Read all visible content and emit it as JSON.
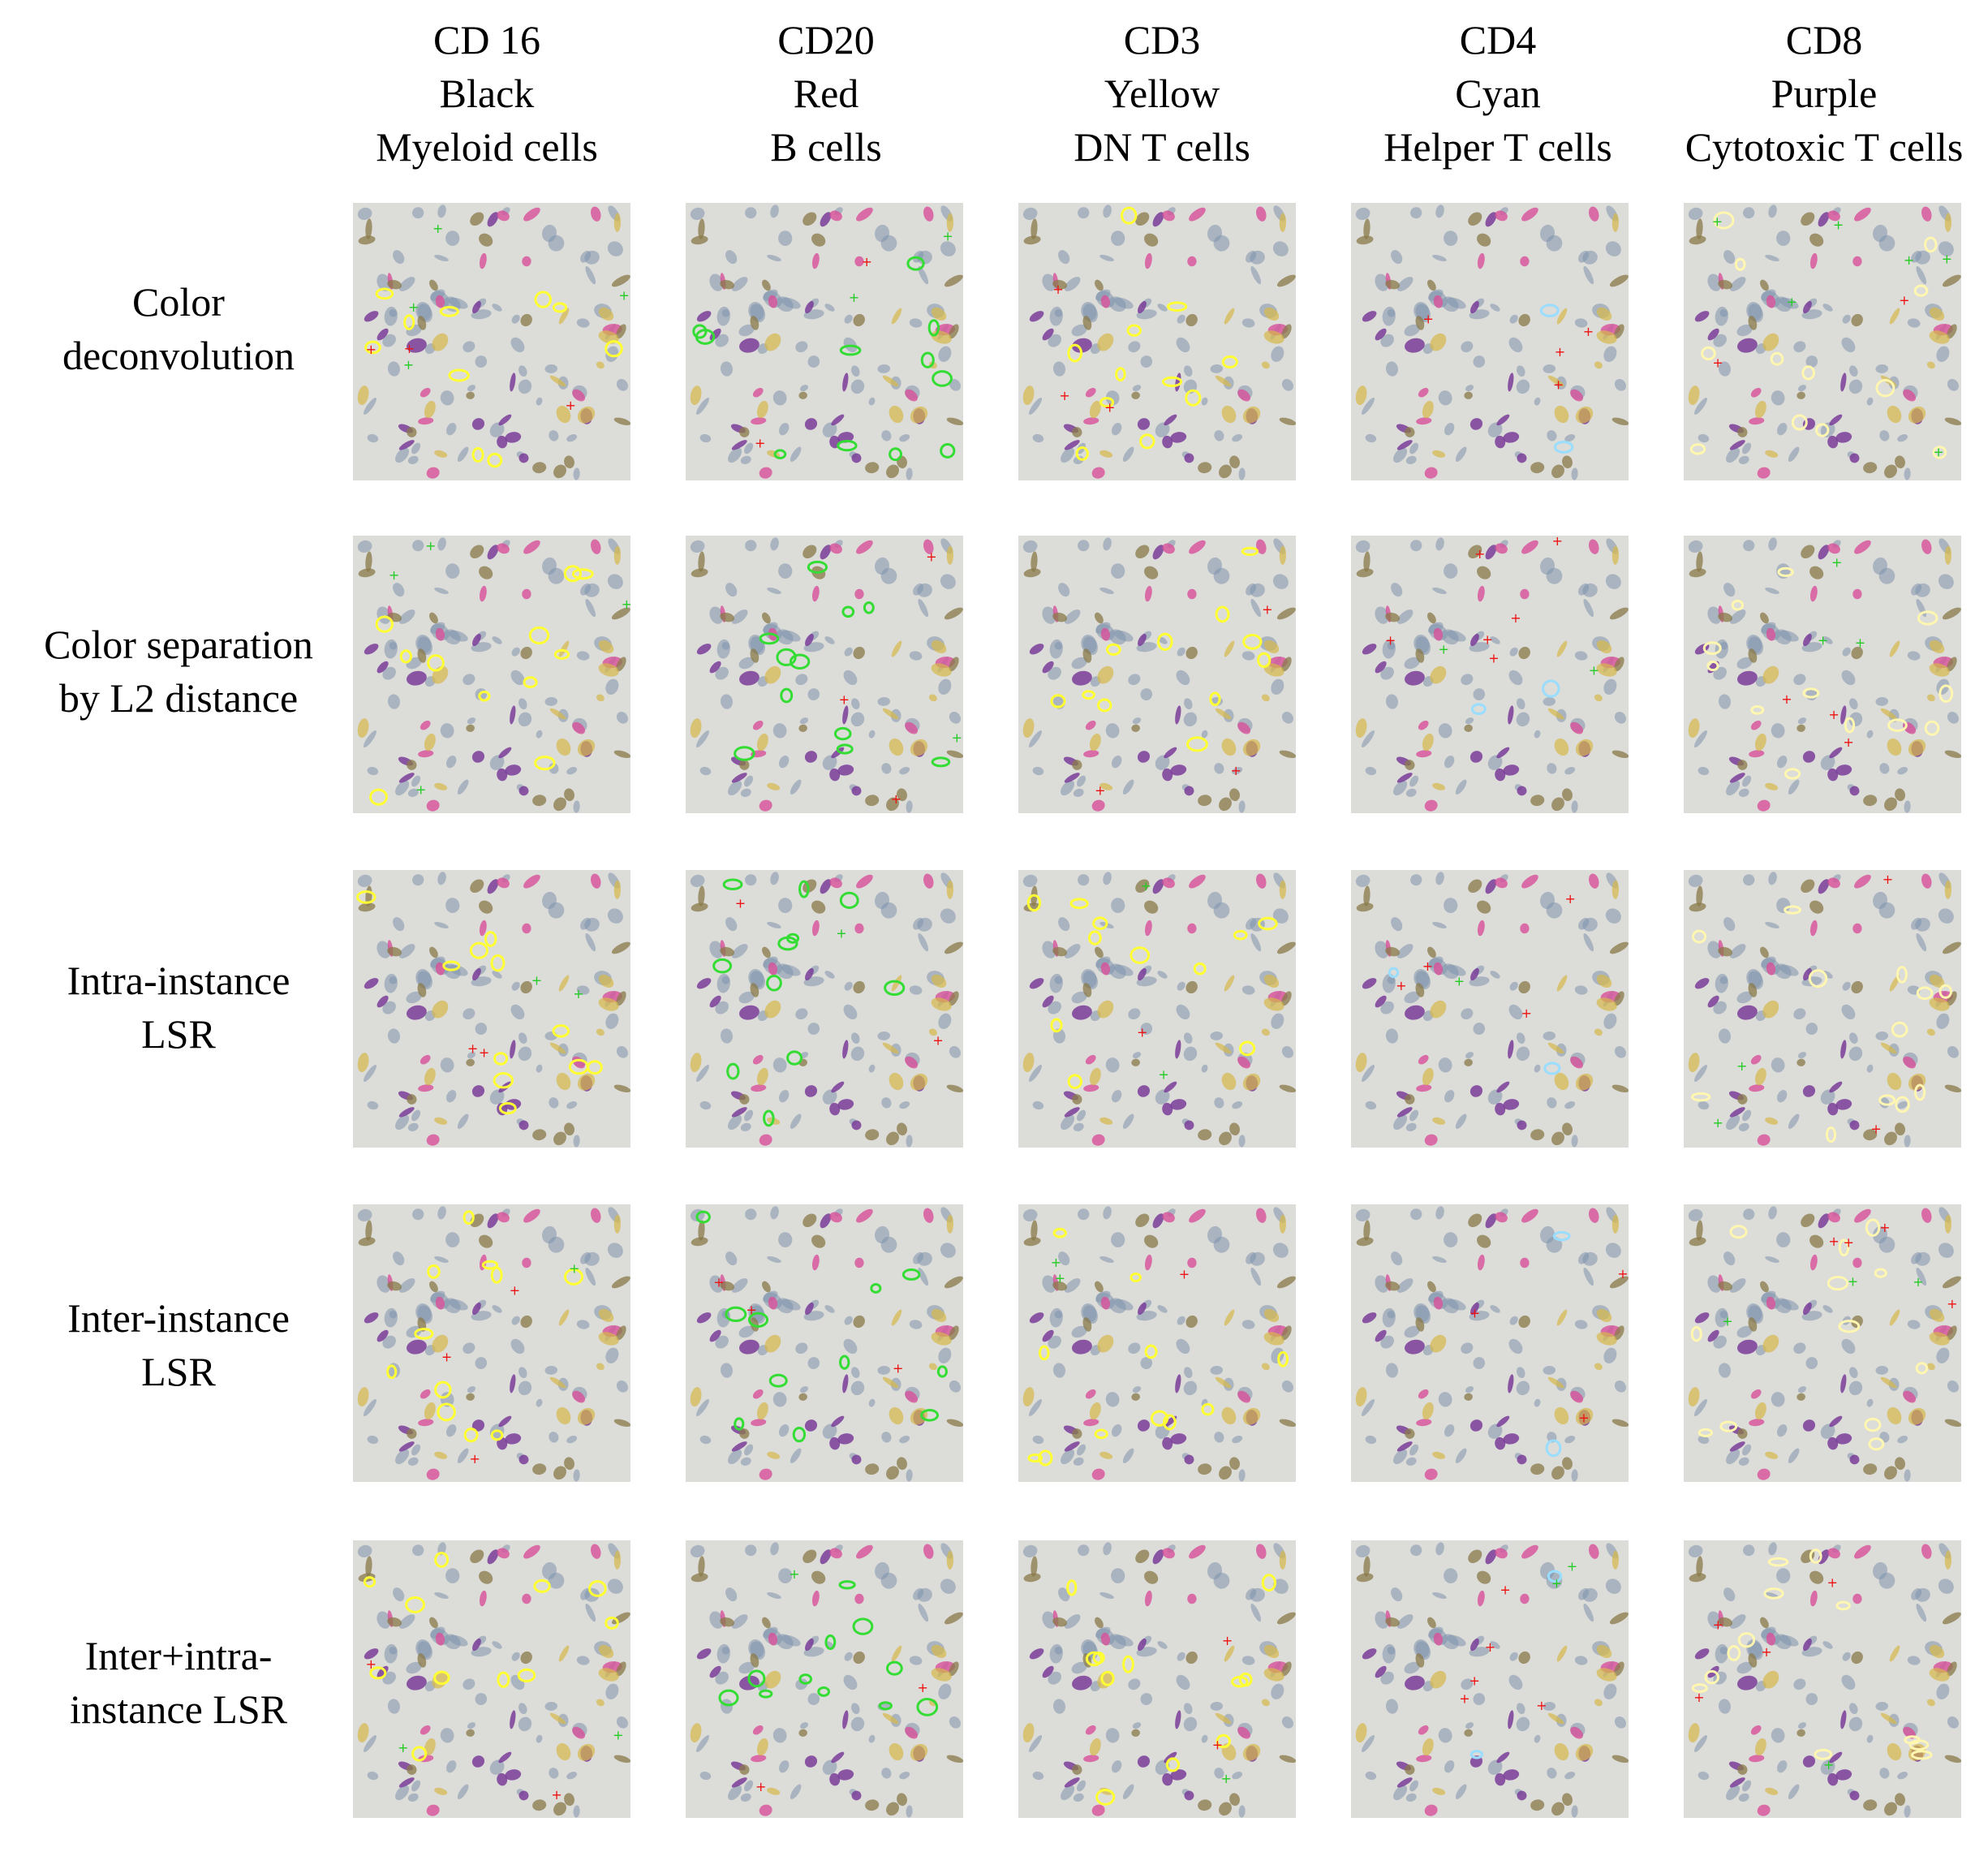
{
  "figure": {
    "columns": [
      {
        "marker": "CD 16",
        "color": "Black",
        "cell_type": "Myeloid cells",
        "highlight": "#ffff33"
      },
      {
        "marker": "CD20",
        "color": "Red",
        "cell_type": "B cells",
        "highlight": "#33dd33"
      },
      {
        "marker": "CD3",
        "color": "Yellow",
        "cell_type": "DN T cells",
        "highlight": "#ffff33"
      },
      {
        "marker": "CD4",
        "color": "Cyan",
        "cell_type": "Helper T cells",
        "highlight": "#99ddff"
      },
      {
        "marker": "CD8",
        "color": "Purple",
        "cell_type": "Cytotoxic T cells",
        "highlight": "#fff6b0"
      }
    ],
    "rows": [
      {
        "lines": [
          "Color",
          "deconvolution"
        ]
      },
      {
        "lines": [
          "Color separation",
          "by L2 distance"
        ]
      },
      {
        "lines": [
          "Intra-instance",
          "LSR"
        ]
      },
      {
        "lines": [
          "Inter-instance",
          "LSR"
        ]
      },
      {
        "lines": [
          "Inter+intra-",
          "instance LSR"
        ]
      }
    ],
    "colors": {
      "tissue_background": "#dcdcd8",
      "nucleus_blue": "#7f93ad",
      "stain_purple": "#7a3d9a",
      "stain_magenta": "#d8509a",
      "stain_brown": "#8a7a4a",
      "stain_yellow": "#d6b84a",
      "annotation_red": "#ee1111",
      "annotation_green": "#22cc22"
    }
  }
}
